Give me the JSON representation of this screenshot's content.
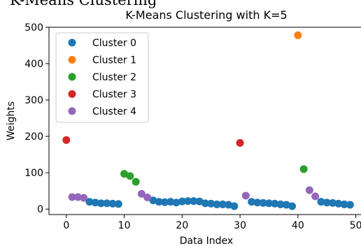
{
  "header": {
    "clipped_heading": "K-Means Clustering"
  },
  "chart_data": {
    "type": "scatter",
    "title": "K-Means Clustering with K=5",
    "xlabel": "Data Index",
    "ylabel": "Weights",
    "xlim": [
      -3,
      51.5
    ],
    "ylim": [
      -15,
      500
    ],
    "xticks": [
      0,
      10,
      20,
      30,
      40,
      50
    ],
    "yticks": [
      0,
      100,
      200,
      300,
      400,
      500
    ],
    "grid": false,
    "legend_position": "top-left",
    "series": [
      {
        "name": "Cluster 0",
        "color": "#1f77b4",
        "points": [
          [
            4,
            20
          ],
          [
            5,
            18
          ],
          [
            6,
            16
          ],
          [
            7,
            16
          ],
          [
            8,
            15
          ],
          [
            9,
            14
          ],
          [
            15,
            24
          ],
          [
            16,
            20
          ],
          [
            17,
            19
          ],
          [
            18,
            20
          ],
          [
            19,
            18
          ],
          [
            20,
            21
          ],
          [
            21,
            22
          ],
          [
            22,
            22
          ],
          [
            23,
            21
          ],
          [
            24,
            16
          ],
          [
            25,
            15
          ],
          [
            26,
            13
          ],
          [
            27,
            13
          ],
          [
            28,
            12
          ],
          [
            29,
            8
          ],
          [
            32,
            20
          ],
          [
            33,
            18
          ],
          [
            34,
            17
          ],
          [
            35,
            16
          ],
          [
            36,
            15
          ],
          [
            37,
            13
          ],
          [
            38,
            12
          ],
          [
            39,
            8
          ],
          [
            44,
            20
          ],
          [
            45,
            18
          ],
          [
            46,
            17
          ],
          [
            47,
            15
          ],
          [
            48,
            13
          ],
          [
            49,
            12
          ]
        ]
      },
      {
        "name": "Cluster 1",
        "color": "#ff7f0e",
        "points": [
          [
            40,
            478
          ]
        ]
      },
      {
        "name": "Cluster 2",
        "color": "#2ca02c",
        "points": [
          [
            10,
            97
          ],
          [
            11,
            91
          ],
          [
            12,
            75
          ],
          [
            41,
            110
          ]
        ]
      },
      {
        "name": "Cluster 3",
        "color": "#d62728",
        "points": [
          [
            0,
            190
          ],
          [
            30,
            182
          ]
        ]
      },
      {
        "name": "Cluster 4",
        "color": "#9467bd",
        "points": [
          [
            1,
            33
          ],
          [
            2,
            33
          ],
          [
            3,
            31
          ],
          [
            13,
            42
          ],
          [
            14,
            32
          ],
          [
            31,
            37
          ],
          [
            42,
            52
          ],
          [
            43,
            35
          ]
        ]
      }
    ]
  }
}
